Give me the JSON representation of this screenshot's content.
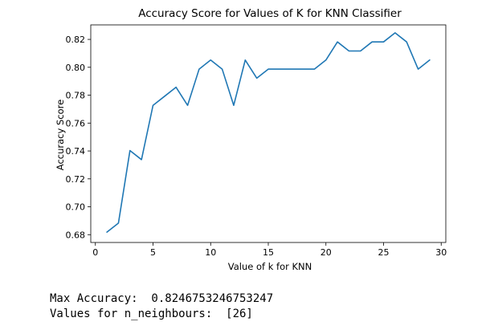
{
  "chart_data": {
    "type": "line",
    "title": "Accuracy Score for Values of K for KNN Classifier",
    "xlabel": "Value of k for KNN",
    "ylabel": "Accuracy Score",
    "xlim": [
      -0.4,
      30.4
    ],
    "ylim": [
      0.6744,
      0.8304
    ],
    "xticks": [
      0,
      5,
      10,
      15,
      20,
      25,
      30
    ],
    "yticks": [
      0.68,
      0.7,
      0.72,
      0.74,
      0.76,
      0.78,
      0.8,
      0.82
    ],
    "ytick_labels": [
      "0.68",
      "0.70",
      "0.72",
      "0.74",
      "0.76",
      "0.78",
      "0.80",
      "0.82"
    ],
    "grid": false,
    "color": "#1f77b4",
    "series": [
      {
        "x": [
          1,
          2,
          3,
          4,
          5,
          6,
          7,
          8,
          9,
          10,
          11,
          12,
          13,
          14,
          15,
          16,
          17,
          18,
          19,
          20,
          21,
          22,
          23,
          24,
          25,
          26,
          27,
          28,
          29
        ],
        "values": [
          0.6818,
          0.6883,
          0.7403,
          0.7338,
          0.7727,
          0.7792,
          0.7857,
          0.7727,
          0.7987,
          0.8052,
          0.7987,
          0.7727,
          0.8052,
          0.7922,
          0.7987,
          0.7987,
          0.7987,
          0.7987,
          0.7987,
          0.8052,
          0.8182,
          0.8117,
          0.8117,
          0.8182,
          0.8182,
          0.8247,
          0.8182,
          0.7987,
          0.8052
        ]
      }
    ]
  },
  "output": {
    "line1": "Max Accuracy:  0.8246753246753247",
    "line2": "Values for n_neighbours:  [26]"
  }
}
